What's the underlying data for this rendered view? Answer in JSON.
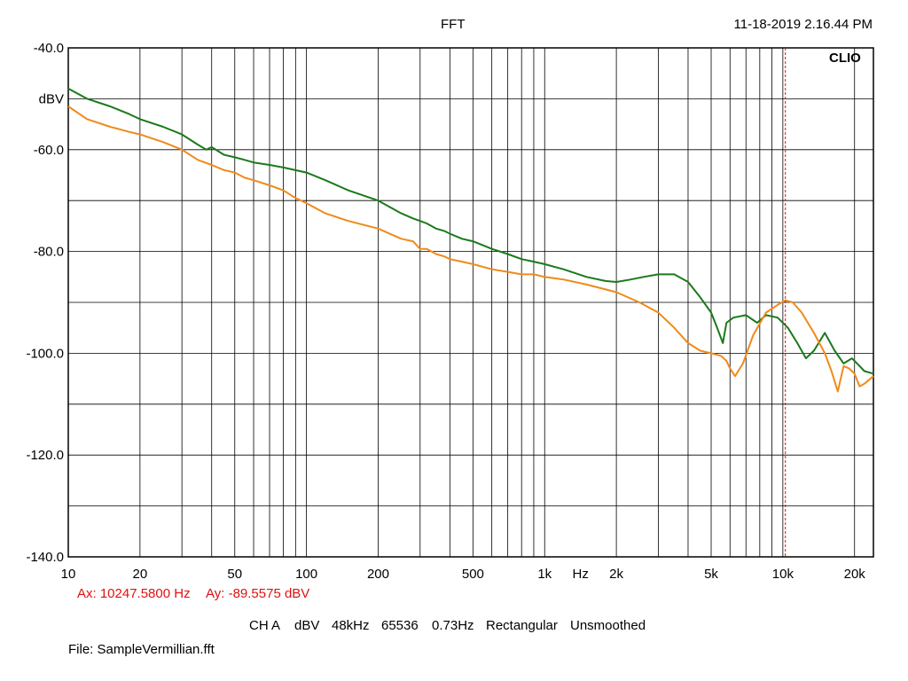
{
  "header": {
    "title": "FFT",
    "timestamp": "11-18-2019 2.16.44 PM"
  },
  "brand": "CLIO",
  "cursor": {
    "ax_label": "Ax: 10247.5800 Hz",
    "ay_label": "Ay: -89.5575 dBV",
    "color": "#e01010"
  },
  "settings": {
    "channel": "CH A",
    "unit": "dBV",
    "sample_rate": "48kHz",
    "fft_size": "65536",
    "resolution": "0.73Hz",
    "window": "Rectangular",
    "smoothing": "Unsmoothed"
  },
  "file": "File: SampleVermillian.fft",
  "chart_data": {
    "type": "line",
    "title": "FFT",
    "xlabel": "Hz",
    "ylabel": "dBV",
    "x_scale": "log",
    "xlim": [
      10,
      24000
    ],
    "ylim": [
      -140,
      -40
    ],
    "grid": true,
    "y_ticks": [
      {
        "value": -40,
        "label": "-40.0"
      },
      {
        "value": -60,
        "label": "-60.0"
      },
      {
        "value": -80,
        "label": "-80.0"
      },
      {
        "value": -100,
        "label": "-100.0"
      },
      {
        "value": -120,
        "label": "-120.0"
      },
      {
        "value": -140,
        "label": "-140.0"
      }
    ],
    "x_ticks": [
      {
        "value": 10,
        "label": "10"
      },
      {
        "value": 20,
        "label": "20"
      },
      {
        "value": 50,
        "label": "50"
      },
      {
        "value": 100,
        "label": "100"
      },
      {
        "value": 200,
        "label": "200"
      },
      {
        "value": 500,
        "label": "500"
      },
      {
        "value": 1000,
        "label": "1k"
      },
      {
        "value": 2000,
        "label": "2k"
      },
      {
        "value": 5000,
        "label": "5k"
      },
      {
        "value": 10000,
        "label": "10k"
      },
      {
        "value": 20000,
        "label": "20k"
      }
    ],
    "cursor_x": 10247.58,
    "series": [
      {
        "color": "#1a7a1a",
        "x": [
          10,
          12,
          15,
          18,
          20,
          25,
          30,
          35,
          38,
          40,
          45,
          50,
          55,
          60,
          70,
          80,
          100,
          120,
          150,
          200,
          250,
          280,
          300,
          320,
          350,
          380,
          400,
          450,
          500,
          600,
          700,
          800,
          900,
          1000,
          1200,
          1500,
          1800,
          2000,
          2300,
          2600,
          3000,
          3500,
          4000,
          4500,
          5000,
          5300,
          5600,
          5800,
          6200,
          7000,
          7800,
          8500,
          9500,
          10500,
          11500,
          12500,
          13500,
          15000,
          16500,
          18000,
          19500,
          21000,
          22000,
          24000
        ],
        "y": [
          -48,
          -50,
          -51.5,
          -53,
          -54,
          -55.5,
          -57,
          -59,
          -60,
          -59.5,
          -61,
          -61.5,
          -62,
          -62.5,
          -63,
          -63.5,
          -64.5,
          -66,
          -68,
          -70,
          -72.5,
          -73.5,
          -74,
          -74.5,
          -75.5,
          -76,
          -76.5,
          -77.5,
          -78,
          -79.5,
          -80.5,
          -81.5,
          -82,
          -82.5,
          -83.5,
          -85,
          -85.8,
          -86,
          -85.5,
          -85,
          -84.5,
          -84.5,
          -86,
          -89,
          -92,
          -95,
          -98,
          -94,
          -93,
          -92.5,
          -94,
          -92.5,
          -93,
          -95,
          -98,
          -101,
          -99.5,
          -96,
          -99.5,
          -102,
          -101,
          -102.5,
          -103.5,
          -104
        ]
      },
      {
        "color": "#f08a1a",
        "x": [
          10,
          12,
          15,
          18,
          20,
          25,
          30,
          35,
          40,
          45,
          50,
          55,
          60,
          70,
          80,
          90,
          100,
          120,
          150,
          200,
          250,
          280,
          300,
          320,
          350,
          380,
          400,
          450,
          500,
          600,
          700,
          800,
          900,
          1000,
          1200,
          1500,
          2000,
          2500,
          3000,
          3500,
          4000,
          4500,
          5000,
          5500,
          5800,
          6000,
          6300,
          6800,
          7500,
          8500,
          9500,
          10247,
          11000,
          12000,
          13500,
          15000,
          16000,
          17000,
          18000,
          19000,
          20000,
          21000,
          22000,
          24000
        ],
        "y": [
          -51.5,
          -54,
          -55.5,
          -56.5,
          -57,
          -58.5,
          -60,
          -62,
          -63,
          -64,
          -64.5,
          -65.5,
          -66,
          -67,
          -68,
          -69.5,
          -70.5,
          -72.5,
          -74,
          -75.5,
          -77.5,
          -78,
          -79.5,
          -79.5,
          -80.5,
          -81,
          -81.5,
          -82,
          -82.5,
          -83.5,
          -84,
          -84.5,
          -84.5,
          -85,
          -85.5,
          -86.5,
          -88,
          -90,
          -92,
          -95,
          -98,
          -99.5,
          -100,
          -100.5,
          -101.5,
          -103,
          -104.5,
          -102,
          -96.5,
          -92,
          -90.5,
          -89.6,
          -90,
          -92,
          -96,
          -100,
          -103.5,
          -107.5,
          -102.5,
          -103,
          -104,
          -106.5,
          -106,
          -104.5
        ]
      }
    ]
  }
}
